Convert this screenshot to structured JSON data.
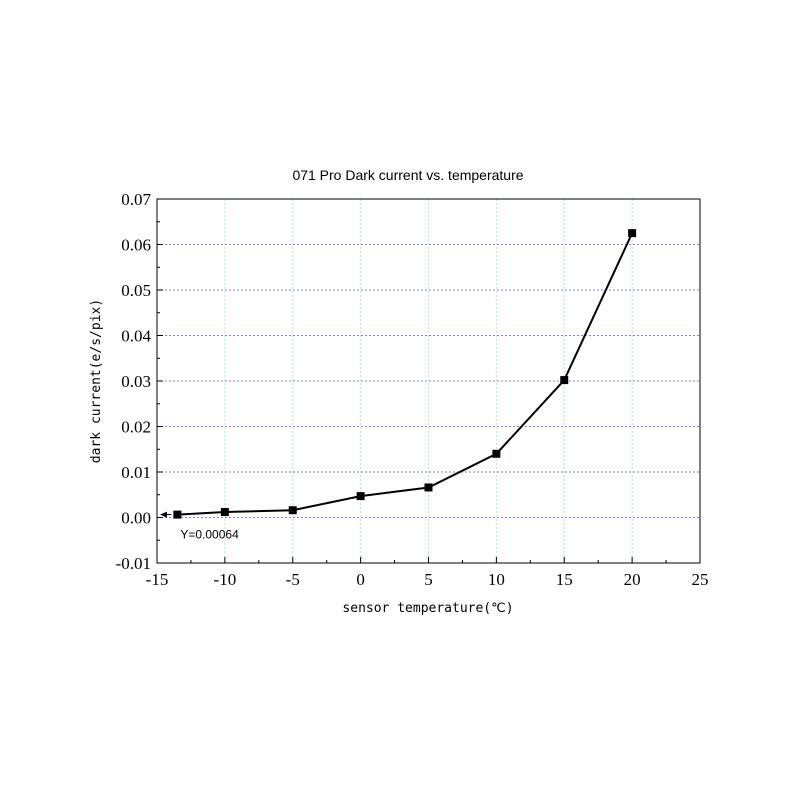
{
  "chart_data": {
    "type": "line",
    "title": "071 Pro Dark current vs. temperature",
    "xlabel": "sensor temperature(℃)",
    "ylabel": "dark current(e/s/pix)",
    "xlim": [
      -15,
      25
    ],
    "ylim": [
      -0.01,
      0.07
    ],
    "x_ticks": [
      -15,
      -10,
      -5,
      0,
      5,
      10,
      15,
      20,
      25
    ],
    "x_tick_labels": [
      "-15",
      "-10",
      "-5",
      "0",
      "5",
      "10",
      "15",
      "20",
      "25"
    ],
    "y_ticks": [
      -0.01,
      0,
      0.01,
      0.02,
      0.03,
      0.04,
      0.05,
      0.06,
      0.07
    ],
    "y_tick_labels": [
      "-0.01",
      "0.00",
      "0.01",
      "0.02",
      "0.03",
      "0.04",
      "0.05",
      "0.06",
      "0.07"
    ],
    "grid": true,
    "series": [
      {
        "x": [
          -13.5,
          -10,
          -5,
          0,
          5,
          10,
          15,
          20
        ],
        "y": [
          0.00064,
          0.0012,
          0.0016,
          0.0047,
          0.0066,
          0.014,
          0.0302,
          0.0625
        ],
        "marker": "square",
        "color": "#000000"
      }
    ],
    "annotations": [
      {
        "text": "Y=0.00064",
        "x": -13.5,
        "y": 0.00064
      }
    ]
  },
  "colors": {
    "vertical_grid": "#a8e6ee",
    "horizontal_grid": "#7f7fd6",
    "line": "#000000"
  }
}
